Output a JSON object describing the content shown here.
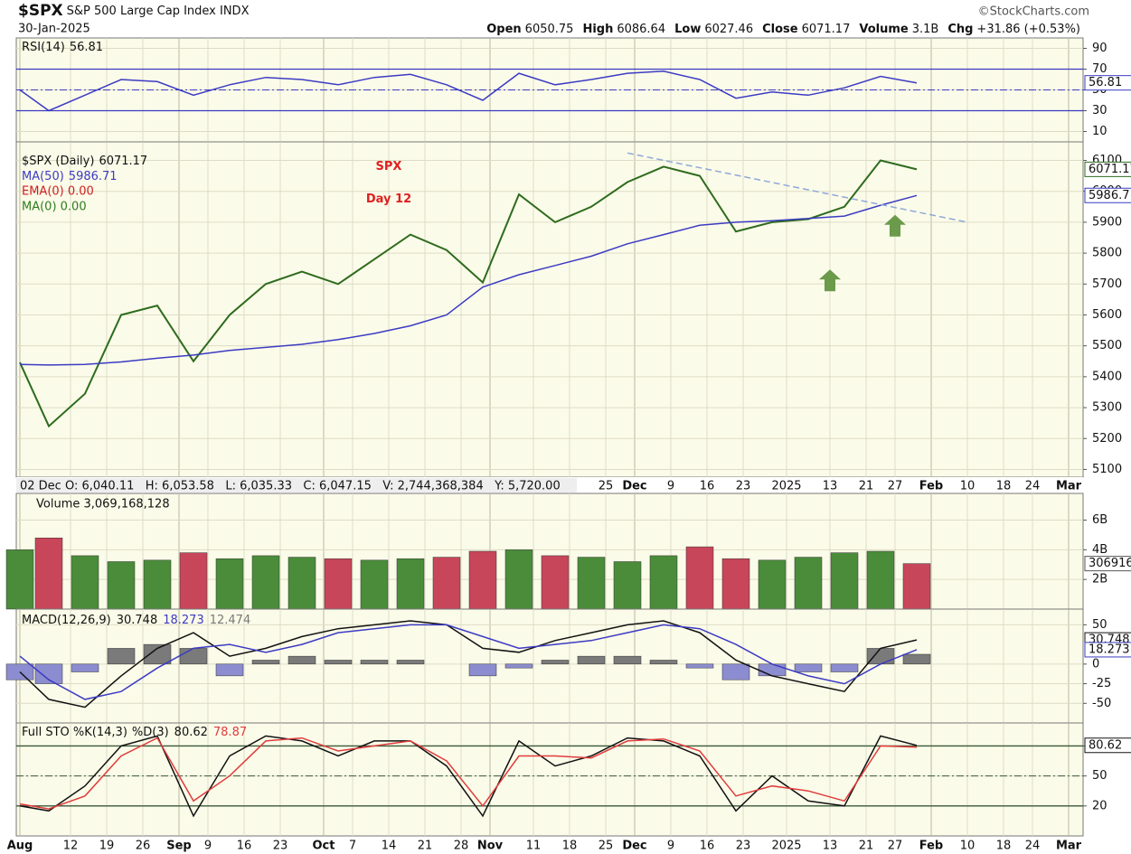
{
  "header": {
    "symbol": "$SPX",
    "name": "S&P 500 Large Cap Index INDX",
    "source": "©StockCharts.com",
    "date": "30-Jan-2025",
    "quote": [
      {
        "label": "Open",
        "value": 6050.75
      },
      {
        "label": "High",
        "value": 6086.64
      },
      {
        "label": "Low",
        "value": 6027.46
      },
      {
        "label": "Close",
        "value": 6071.17
      },
      {
        "label": "Volume",
        "value": "3.1B"
      },
      {
        "label": "Chg",
        "value": "+31.86 (+0.53%)"
      }
    ]
  },
  "info_bar": "02 Dec O: 6,040.11   H: 6,053.58   L: 6,035.33   C: 6,047.15   V: 2,744,368,384   Y: 5,720.00",
  "chart_data": [
    {
      "type": "line",
      "x": [
        0,
        4,
        9,
        14,
        19,
        24,
        29,
        34,
        39,
        44,
        49,
        54,
        59,
        64,
        69,
        74,
        79,
        84,
        89,
        94,
        99,
        104,
        109,
        114,
        119,
        124
      ],
      "xlim": [
        -0.5,
        147
      ],
      "ylim": [
        0,
        100
      ],
      "yticks": [
        10,
        30,
        50,
        70,
        90
      ],
      "ref_lines": [
        {
          "value": 70,
          "style": "solid"
        },
        {
          "value": 50,
          "style": "dashed"
        },
        {
          "value": 30,
          "style": "solid"
        }
      ],
      "series": [
        {
          "name": "RSI(14)",
          "color": "#3b3bc4",
          "tag": true,
          "values": [
            50,
            30,
            45,
            60,
            58,
            45,
            55,
            62,
            60,
            55,
            62,
            65,
            55,
            40,
            66,
            55,
            60,
            66,
            68,
            60,
            42,
            48,
            45,
            52,
            63,
            56.81
          ]
        }
      ]
    },
    {
      "type": "line",
      "x": [
        0,
        4,
        9,
        14,
        19,
        24,
        29,
        34,
        39,
        44,
        49,
        54,
        59,
        64,
        69,
        74,
        79,
        84,
        89,
        94,
        99,
        104,
        109,
        114,
        119,
        124
      ],
      "xlim": [
        -0.5,
        147
      ],
      "ylim": [
        5075,
        6160
      ],
      "yticks": [
        5100,
        5200,
        5300,
        5400,
        5500,
        5600,
        5700,
        5800,
        5900,
        6000,
        6100
      ],
      "xticks": [
        {
          "value": 81,
          "label": "25"
        },
        {
          "value": 85,
          "label": "Dec"
        },
        {
          "value": 90,
          "label": "9"
        },
        {
          "value": 95,
          "label": "16"
        },
        {
          "value": 100,
          "label": "23"
        },
        {
          "value": 106,
          "label": "2025"
        },
        {
          "value": 112,
          "label": "13"
        },
        {
          "value": 117,
          "label": "21"
        },
        {
          "value": 121,
          "label": "27"
        },
        {
          "value": 126,
          "label": "Feb"
        },
        {
          "value": 131,
          "label": "10"
        },
        {
          "value": 136,
          "label": "18"
        },
        {
          "value": 140,
          "label": "24"
        },
        {
          "value": 145,
          "label": "Mar"
        }
      ],
      "series": [
        {
          "name": "$SPX (Daily)",
          "color": "#2e6b1e",
          "tag": true,
          "values": [
            5446,
            5240,
            5345,
            5600,
            5630,
            5450,
            5600,
            5700,
            5740,
            5700,
            5780,
            5860,
            5810,
            5705,
            5990,
            5900,
            5950,
            6030,
            6080,
            6050,
            5870,
            5900,
            5910,
            5950,
            6100,
            6071.17
          ]
        },
        {
          "name": "MA(50)",
          "color": "#3b3bc4",
          "tag": true,
          "values": [
            5440,
            5438,
            5440,
            5448,
            5460,
            5470,
            5485,
            5495,
            5505,
            5520,
            5540,
            5565,
            5600,
            5690,
            5730,
            5760,
            5790,
            5830,
            5860,
            5890,
            5900,
            5905,
            5912,
            5920,
            5955,
            5986.71
          ]
        }
      ],
      "extra_legend": [
        {
          "text": "EMA(0) 0.00",
          "color": "#d02020"
        },
        {
          "text": "MA(0) 0.00",
          "color": "#2e7d1e"
        }
      ],
      "annotations": [
        {
          "text": "SPX",
          "x": 51,
          "y": 6080,
          "color": "#e02020"
        },
        {
          "text": "Day 12",
          "x": 51,
          "y": 5975,
          "color": "#e02020"
        }
      ],
      "trendline": {
        "x": [
          84,
          131
        ],
        "y": [
          6124,
          5900
        ],
        "color": "#8fa8d8"
      },
      "arrows": {
        "x": [
          112,
          121
        ],
        "y": [
          5747,
          5924
        ],
        "color": "#6a9a4a"
      }
    },
    {
      "type": "bar",
      "x": [
        0,
        4,
        9,
        14,
        19,
        24,
        29,
        34,
        39,
        44,
        49,
        54,
        59,
        64,
        69,
        74,
        79,
        84,
        89,
        94,
        99,
        104,
        109,
        114,
        119,
        124
      ],
      "xlim": [
        -0.5,
        147
      ],
      "ylim": [
        0,
        7800000000
      ],
      "yticks": [
        {
          "value": 2000000000,
          "label": "2B"
        },
        {
          "value": 4000000000,
          "label": "4B"
        },
        {
          "value": 6000000000,
          "label": "6B"
        }
      ],
      "legend": "Volume 3,069,168,128",
      "series": [
        {
          "up_color": "#4a8c3a",
          "down_color": "#c8465a",
          "tag": true,
          "values": [
            4000000000,
            4800000000,
            3600000000,
            3200000000,
            3300000000,
            3800000000,
            3400000000,
            3600000000,
            3500000000,
            3400000000,
            3300000000,
            3400000000,
            3500000000,
            3900000000,
            4000000000,
            3600000000,
            3500000000,
            3200000000,
            3600000000,
            4200000000,
            3400000000,
            3300000000,
            3500000000,
            3800000000,
            3900000000,
            3069168128
          ]
        }
      ]
    },
    {
      "type": "line",
      "x": [
        0,
        4,
        9,
        14,
        19,
        24,
        29,
        34,
        39,
        44,
        49,
        54,
        59,
        64,
        69,
        74,
        79,
        84,
        89,
        94,
        99,
        104,
        109,
        114,
        119,
        124
      ],
      "xlim": [
        -0.5,
        147
      ],
      "ylim": [
        -75,
        70
      ],
      "yticks": [
        -50,
        -25,
        0,
        50
      ],
      "series": [
        {
          "type": "bar",
          "pos_color": "#7a7a7a",
          "neg_color": "#8c8cd0",
          "values": [
            -20,
            -25,
            -10,
            20,
            25,
            20,
            -15,
            5,
            10,
            5,
            5,
            5,
            0,
            -15,
            -5,
            5,
            10,
            10,
            5,
            -5,
            -20,
            -15,
            -10,
            -10,
            20,
            12.474
          ]
        },
        {
          "name": "MACD(12,26,9)",
          "color": "#111111",
          "tag": true,
          "values": [
            -10,
            -45,
            -55,
            -15,
            20,
            40,
            10,
            20,
            35,
            45,
            50,
            55,
            50,
            20,
            15,
            30,
            40,
            50,
            55,
            40,
            5,
            -15,
            -25,
            -35,
            20,
            30.748
          ]
        },
        {
          "color": "#3b3bc4",
          "tag": true,
          "values": [
            10,
            -20,
            -45,
            -35,
            -5,
            20,
            25,
            15,
            25,
            40,
            45,
            50,
            50,
            35,
            20,
            25,
            30,
            40,
            50,
            45,
            25,
            0,
            -15,
            -25,
            0,
            18.273
          ]
        }
      ]
    },
    {
      "type": "line",
      "x": [
        0,
        4,
        9,
        14,
        19,
        24,
        29,
        34,
        39,
        44,
        49,
        54,
        59,
        64,
        69,
        74,
        79,
        84,
        89,
        94,
        99,
        104,
        109,
        114,
        119,
        124
      ],
      "xlim": [
        -0.5,
        147
      ],
      "ylim": [
        -10,
        103
      ],
      "yticks": [
        20,
        50,
        80
      ],
      "xticks": [
        {
          "value": 0,
          "label": "Aug"
        },
        {
          "value": 7,
          "label": "12"
        },
        {
          "value": 12,
          "label": "19"
        },
        {
          "value": 17,
          "label": "26"
        },
        {
          "value": 22,
          "label": "Sep"
        },
        {
          "value": 26,
          "label": "9"
        },
        {
          "value": 31,
          "label": "16"
        },
        {
          "value": 36,
          "label": "23"
        },
        {
          "value": 42,
          "label": "Oct"
        },
        {
          "value": 46,
          "label": "7"
        },
        {
          "value": 51,
          "label": "14"
        },
        {
          "value": 56,
          "label": "21"
        },
        {
          "value": 61,
          "label": "28"
        },
        {
          "value": 65,
          "label": "Nov"
        },
        {
          "value": 71,
          "label": "11"
        },
        {
          "value": 76,
          "label": "18"
        },
        {
          "value": 81,
          "label": "25"
        },
        {
          "value": 85,
          "label": "Dec"
        },
        {
          "value": 90,
          "label": "9"
        },
        {
          "value": 95,
          "label": "16"
        },
        {
          "value": 100,
          "label": "23"
        },
        {
          "value": 106,
          "label": "2025"
        },
        {
          "value": 112,
          "label": "13"
        },
        {
          "value": 117,
          "label": "21"
        },
        {
          "value": 121,
          "label": "27"
        },
        {
          "value": 126,
          "label": "Feb"
        },
        {
          "value": 131,
          "label": "10"
        },
        {
          "value": 136,
          "label": "18"
        },
        {
          "value": 140,
          "label": "24"
        },
        {
          "value": 145,
          "label": "Mar"
        }
      ],
      "ref_lines": [
        {
          "value": 80,
          "style": "solid"
        },
        {
          "value": 50,
          "style": "dashed"
        },
        {
          "value": 20,
          "style": "solid"
        }
      ],
      "series": [
        {
          "name": "Full STO %K(14,3)",
          "color": "#111111",
          "tag": true,
          "values": [
            20,
            15,
            40,
            80,
            90,
            10,
            70,
            90,
            85,
            70,
            85,
            85,
            60,
            10,
            85,
            60,
            70,
            88,
            85,
            70,
            15,
            50,
            25,
            20,
            90,
            80.62
          ]
        },
        {
          "name": "%D(3)",
          "color": "#e03c3c",
          "values": [
            22,
            17,
            30,
            70,
            88,
            25,
            50,
            85,
            88,
            75,
            80,
            85,
            65,
            20,
            70,
            70,
            68,
            85,
            87,
            75,
            30,
            40,
            35,
            25,
            80,
            78.87
          ]
        }
      ]
    }
  ]
}
